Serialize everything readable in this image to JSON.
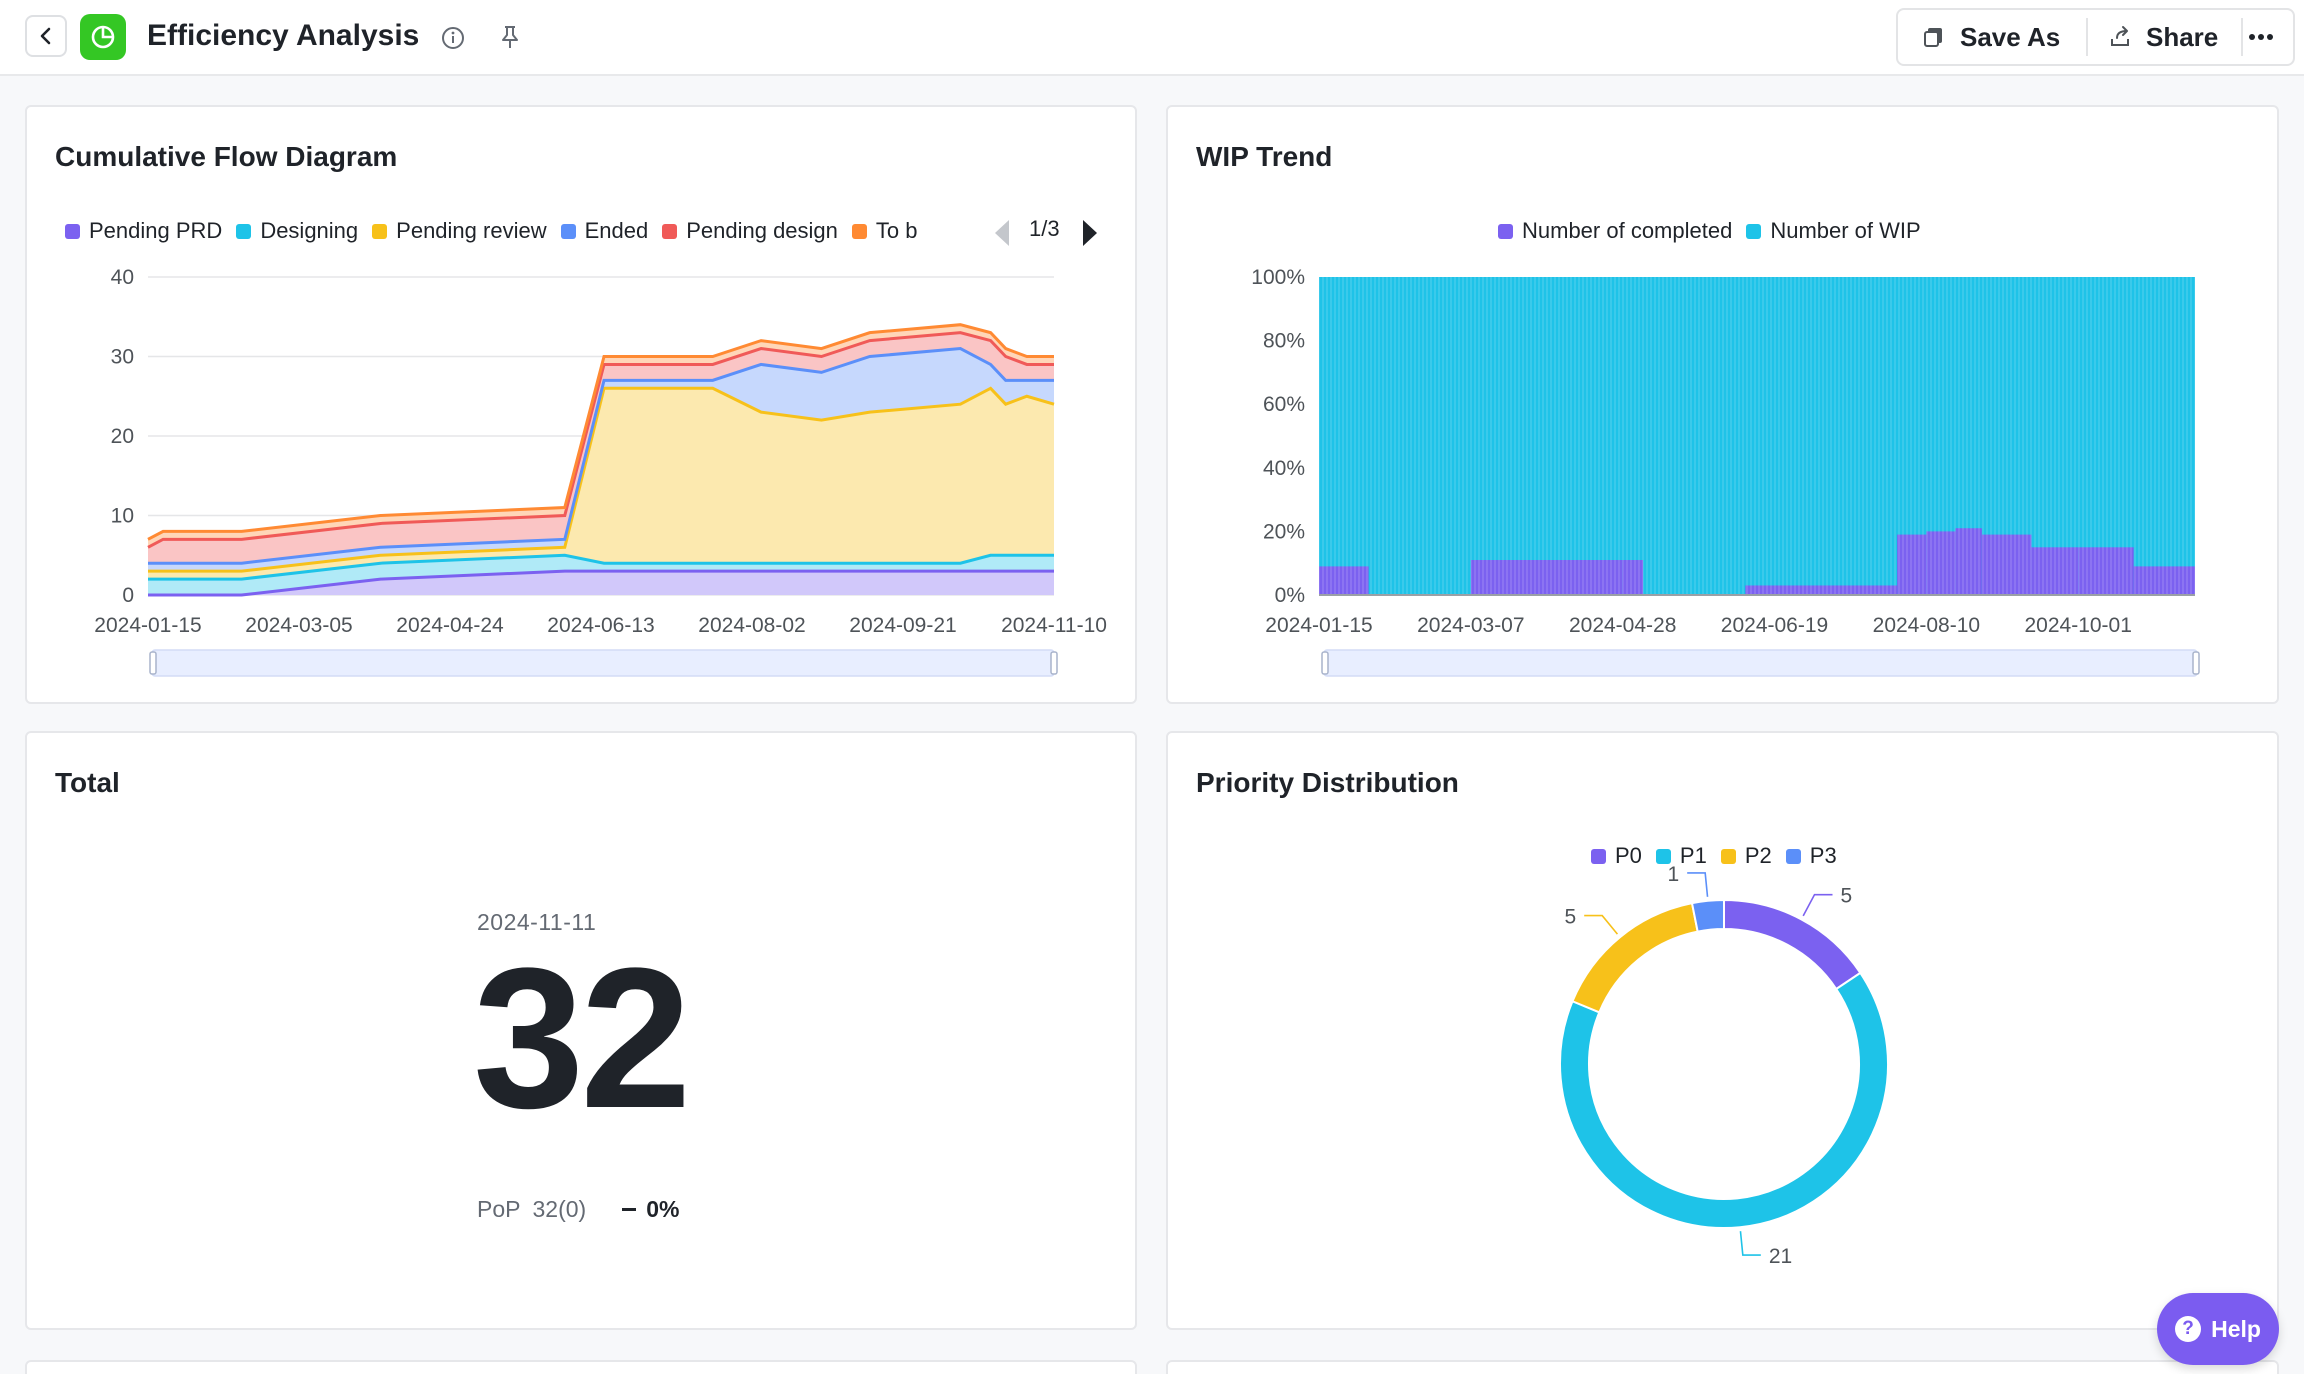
{
  "header": {
    "title": "Efficiency Analysis",
    "save_as_label": "Save As",
    "share_label": "Share",
    "app_color": "#34c724"
  },
  "cfd": {
    "title": "Cumulative Flow Diagram",
    "legend_items": [
      {
        "label": "Pending PRD",
        "color": "#7b61f0"
      },
      {
        "label": "Designing",
        "color": "#1ec3e8"
      },
      {
        "label": "Pending review",
        "color": "#f7c11a"
      },
      {
        "label": "Ended",
        "color": "#5b8ff9"
      },
      {
        "label": "Pending design",
        "color": "#f05a58"
      },
      {
        "label": "To b",
        "color": "#ff8a33"
      }
    ],
    "pager": "1/3"
  },
  "wip": {
    "title": "WIP Trend",
    "legend_items": [
      {
        "label": "Number of completed",
        "color": "#7b61f0"
      },
      {
        "label": "Number of WIP",
        "color": "#1ec3e8"
      }
    ]
  },
  "total": {
    "title": "Total",
    "date": "2024-11-11",
    "value": "32",
    "pop_label": "PoP",
    "pop_value": "32(0)",
    "pop_pct": "0%"
  },
  "priority": {
    "title": "Priority Distribution",
    "legend_items": [
      {
        "label": "P0",
        "color": "#7b61f0"
      },
      {
        "label": "P1",
        "color": "#1ec3e8"
      },
      {
        "label": "P2",
        "color": "#f7c11a"
      },
      {
        "label": "P3",
        "color": "#5b8ff9"
      }
    ]
  },
  "help_label": "Help",
  "chart_data": [
    {
      "type": "area",
      "title": "Cumulative Flow Diagram",
      "x_ticks": [
        "2024-01-15",
        "2024-03-05",
        "2024-04-24",
        "2024-06-13",
        "2024-08-02",
        "2024-09-21",
        "2024-11-10"
      ],
      "y_ticks": [
        "0",
        "10",
        "20",
        "30",
        "40"
      ],
      "ylim": [
        0,
        40
      ],
      "x": [
        "2024-01-15",
        "2024-01-20",
        "2024-02-15",
        "2024-04-01",
        "2024-06-01",
        "2024-06-14",
        "2024-07-01",
        "2024-07-20",
        "2024-08-05",
        "2024-08-25",
        "2024-09-10",
        "2024-10-10",
        "2024-10-20",
        "2024-10-25",
        "2024-11-01",
        "2024-11-10"
      ],
      "series": [
        {
          "name": "Pending PRD",
          "values": [
            0,
            0,
            0,
            2,
            3,
            3,
            3,
            3,
            3,
            3,
            3,
            3,
            3,
            3,
            3,
            3
          ]
        },
        {
          "name": "Designing",
          "values": [
            2,
            2,
            2,
            2,
            2,
            1,
            1,
            1,
            1,
            1,
            1,
            1,
            2,
            2,
            2,
            2
          ]
        },
        {
          "name": "Pending review",
          "values": [
            1,
            1,
            1,
            1,
            1,
            22,
            22,
            22,
            19,
            18,
            19,
            20,
            21,
            19,
            20,
            19
          ]
        },
        {
          "name": "Ended",
          "values": [
            1,
            1,
            1,
            1,
            1,
            1,
            1,
            1,
            6,
            6,
            7,
            7,
            3,
            3,
            2,
            3
          ]
        },
        {
          "name": "Pending design",
          "values": [
            2,
            3,
            3,
            3,
            3,
            2,
            2,
            2,
            2,
            2,
            2,
            2,
            3,
            3,
            2,
            2
          ]
        },
        {
          "name": "To b",
          "values": [
            1,
            1,
            1,
            1,
            1,
            1,
            1,
            1,
            1,
            1,
            1,
            1,
            1,
            1,
            1,
            1
          ]
        }
      ]
    },
    {
      "type": "bar",
      "title": "WIP Trend",
      "stacked": "percent",
      "x_ticks": [
        "2024-01-15",
        "2024-03-07",
        "2024-04-28",
        "2024-06-19",
        "2024-08-10",
        "2024-10-01"
      ],
      "y_ticks": [
        "0%",
        "20%",
        "40%",
        "60%",
        "80%",
        "100%"
      ],
      "ylim": [
        0,
        100
      ],
      "x": [
        "2024-01-15",
        "2024-02-01",
        "2024-03-07",
        "2024-04-28",
        "2024-05-05",
        "2024-06-09",
        "2024-07-01",
        "2024-07-31",
        "2024-08-10",
        "2024-08-20",
        "2024-08-29",
        "2024-09-15",
        "2024-10-01",
        "2024-10-20",
        "2024-11-10"
      ],
      "series": [
        {
          "name": "Number of completed",
          "values": [
            9,
            0,
            11,
            11,
            0,
            3,
            3,
            19,
            20,
            21,
            19,
            15,
            15,
            9,
            9
          ]
        },
        {
          "name": "Number of WIP",
          "values": [
            91,
            100,
            89,
            89,
            100,
            97,
            97,
            81,
            80,
            79,
            81,
            85,
            85,
            91,
            91
          ]
        }
      ]
    },
    {
      "type": "pie",
      "title": "Priority Distribution",
      "categories": [
        "P0",
        "P1",
        "P2",
        "P3"
      ],
      "values": [
        5,
        21,
        5,
        1
      ],
      "data_labels": [
        "5",
        "21",
        "5",
        "1"
      ]
    }
  ]
}
